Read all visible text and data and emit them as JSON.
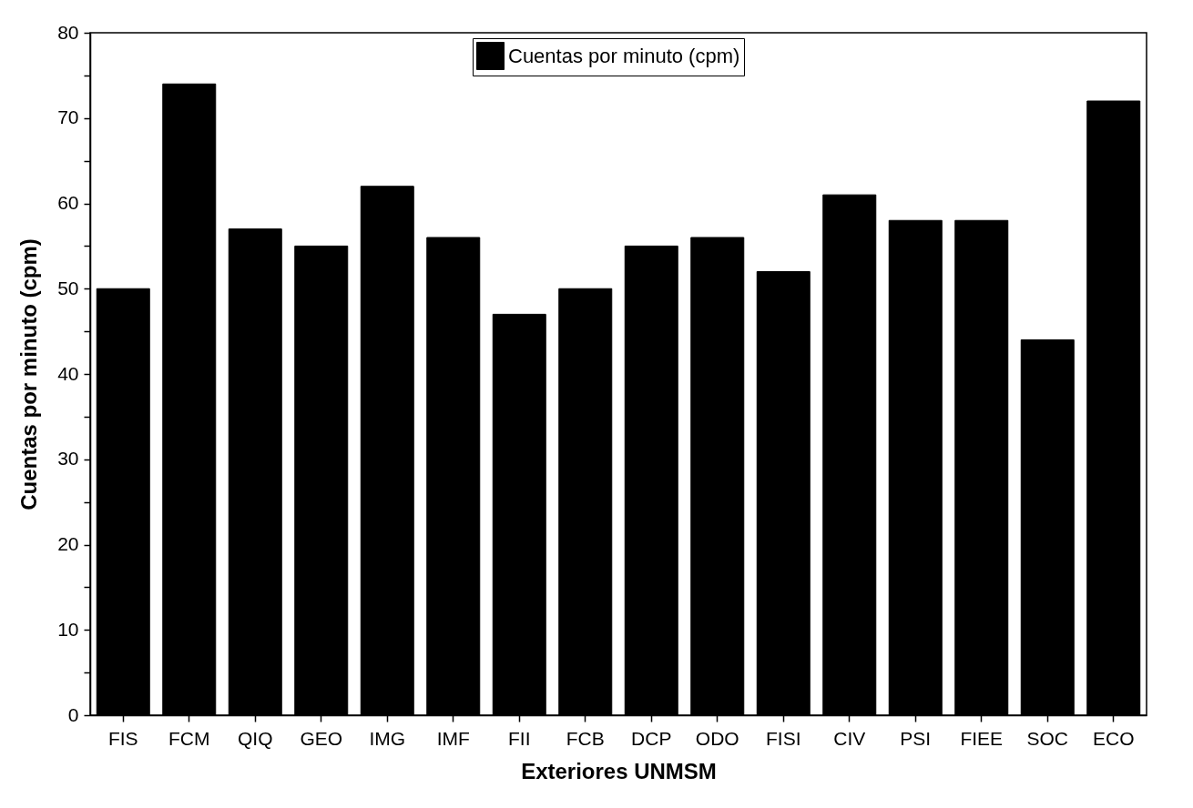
{
  "chart_data": {
    "type": "bar",
    "xlabel": "Exteriores UNMSM",
    "ylabel": "Cuentas por minuto (cpm)",
    "categories": [
      "FIS",
      "FCM",
      "QIQ",
      "GEO",
      "IMG",
      "IMF",
      "FII",
      "FCB",
      "DCP",
      "ODO",
      "FISI",
      "CIV",
      "PSI",
      "FIEE",
      "SOC",
      "ECO"
    ],
    "series": [
      {
        "name": "Cuentas por minuto (cpm)",
        "color": "#000000",
        "values": [
          50,
          74,
          57,
          55,
          62,
          56,
          47,
          50,
          55,
          56,
          52,
          61,
          58,
          58,
          44,
          72
        ]
      }
    ],
    "ylim": [
      0,
      80
    ],
    "yticks": [
      0,
      {
        "value": 5,
        "label": null
      },
      10,
      {
        "value": 15,
        "label": null
      },
      20,
      {
        "value": 25,
        "label": null
      },
      30,
      {
        "value": 35,
        "label": null
      },
      40,
      {
        "value": 45,
        "label": null
      },
      50,
      {
        "value": 55,
        "label": null
      },
      60,
      {
        "value": 65,
        "label": null
      },
      70,
      {
        "value": 75,
        "label": null
      },
      80
    ],
    "grid": false,
    "legend": "top"
  }
}
